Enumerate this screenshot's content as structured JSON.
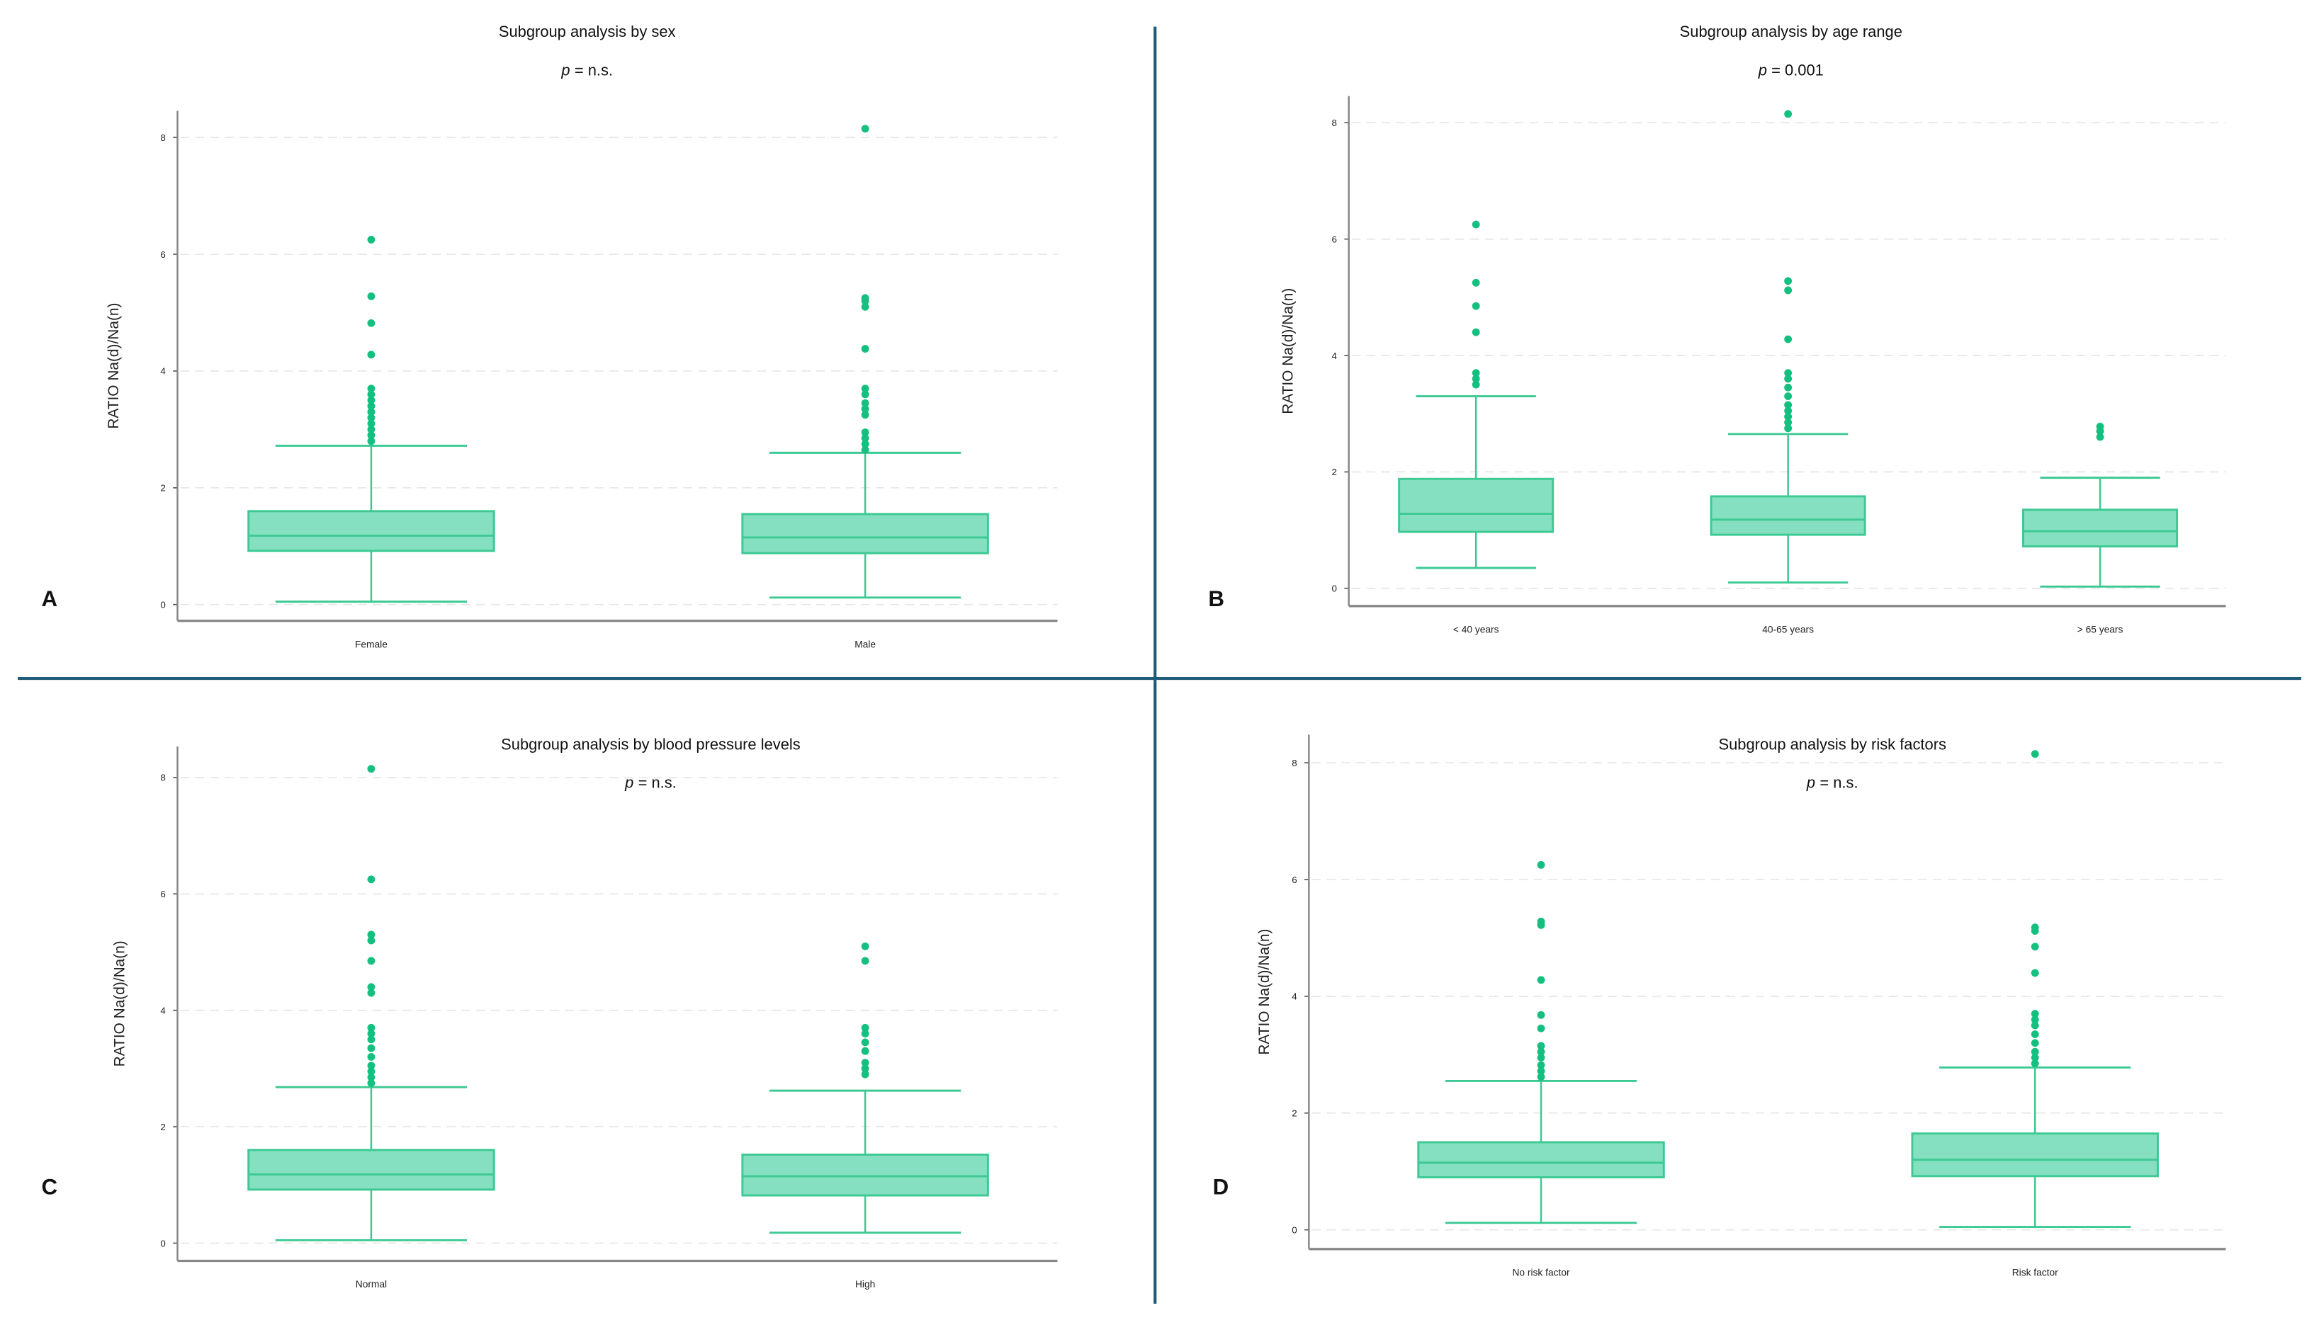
{
  "colors": {
    "box_fill": "#84e0c0",
    "box_stroke": "#3cc994",
    "outlier": "#14c080",
    "divider": "#1f5b78",
    "grid": "#e6e6e6"
  },
  "chart_data": [
    {
      "type": "box",
      "panel": "A",
      "title": "Subgroup analysis by sex",
      "p_label": "p",
      "p_value": "= n.s.",
      "ylabel": "RATIO Na(d)/Na(n)",
      "ylim": [
        -0.3,
        8.5
      ],
      "yticks": [
        "0",
        "2",
        "4",
        "6",
        "8"
      ],
      "grid": true,
      "categories": [
        "Female",
        "Male"
      ],
      "boxes": [
        {
          "min": 0.05,
          "q1": 0.92,
          "median": 1.18,
          "q3": 1.6,
          "max": 2.72,
          "outliers": [
            2.8,
            2.9,
            3.0,
            3.1,
            3.2,
            3.3,
            3.4,
            3.5,
            3.6,
            3.7,
            4.28,
            4.82,
            5.28,
            6.25
          ]
        },
        {
          "min": 0.12,
          "q1": 0.88,
          "median": 1.15,
          "q3": 1.55,
          "max": 2.6,
          "outliers": [
            2.65,
            2.75,
            2.85,
            2.95,
            3.25,
            3.35,
            3.45,
            3.6,
            3.7,
            4.38,
            5.1,
            5.2,
            5.25,
            8.15
          ]
        }
      ]
    },
    {
      "type": "box",
      "panel": "B",
      "title": "Subgroup analysis by age range",
      "p_label": "p",
      "p_value": "= 0.001",
      "ylabel": "RATIO Na(d)/Na(n)",
      "ylim": [
        -0.3,
        8.5
      ],
      "yticks": [
        "0",
        "2",
        "4",
        "6",
        "8"
      ],
      "grid": true,
      "categories": [
        "< 40 years",
        "40-65 years",
        "> 65 years"
      ],
      "boxes": [
        {
          "min": 0.35,
          "q1": 0.97,
          "median": 1.28,
          "q3": 1.88,
          "max": 3.3,
          "outliers": [
            3.5,
            3.6,
            3.7,
            4.4,
            4.85,
            5.25,
            6.25
          ]
        },
        {
          "min": 0.1,
          "q1": 0.92,
          "median": 1.18,
          "q3": 1.58,
          "max": 2.65,
          "outliers": [
            2.75,
            2.85,
            2.95,
            3.05,
            3.15,
            3.3,
            3.45,
            3.6,
            3.7,
            4.28,
            5.12,
            5.28,
            8.15
          ]
        },
        {
          "min": 0.03,
          "q1": 0.72,
          "median": 0.98,
          "q3": 1.35,
          "max": 1.9,
          "outliers": [
            2.6,
            2.7,
            2.78
          ]
        }
      ]
    },
    {
      "type": "box",
      "panel": "C",
      "title": "Subgroup analysis by blood pressure levels",
      "p_label": "p",
      "p_value": "= n.s.",
      "ylabel": "RATIO Na(d)/Na(n)",
      "ylim": [
        -0.3,
        8.5
      ],
      "yticks": [
        "0",
        "2",
        "4",
        "6",
        "8"
      ],
      "grid": true,
      "categories": [
        "Normal",
        "High"
      ],
      "boxes": [
        {
          "min": 0.05,
          "q1": 0.92,
          "median": 1.18,
          "q3": 1.6,
          "max": 2.68,
          "outliers": [
            2.75,
            2.85,
            2.95,
            3.05,
            3.2,
            3.35,
            3.5,
            3.6,
            3.7,
            4.3,
            4.4,
            4.85,
            5.2,
            5.3,
            6.25,
            8.15
          ]
        },
        {
          "min": 0.18,
          "q1": 0.82,
          "median": 1.15,
          "q3": 1.52,
          "max": 2.62,
          "outliers": [
            2.9,
            3.0,
            3.1,
            3.3,
            3.45,
            3.6,
            3.7,
            4.85,
            5.1
          ]
        }
      ]
    },
    {
      "type": "box",
      "panel": "D",
      "title": "Subgroup analysis by risk factors",
      "p_label": "p",
      "p_value": "= n.s.",
      "ylabel": "RATIO Na(d)/Na(n)",
      "ylim": [
        -0.3,
        8.5
      ],
      "yticks": [
        "0",
        "2",
        "4",
        "6",
        "8"
      ],
      "grid": true,
      "categories": [
        "No risk factor",
        "Risk factor"
      ],
      "boxes": [
        {
          "min": 0.12,
          "q1": 0.9,
          "median": 1.15,
          "q3": 1.5,
          "max": 2.55,
          "outliers": [
            2.62,
            2.72,
            2.82,
            2.95,
            3.05,
            3.15,
            3.45,
            3.68,
            4.28,
            5.22,
            5.28,
            6.25
          ]
        },
        {
          "min": 0.05,
          "q1": 0.92,
          "median": 1.2,
          "q3": 1.65,
          "max": 2.78,
          "outliers": [
            2.85,
            2.95,
            3.05,
            3.2,
            3.35,
            3.5,
            3.6,
            3.7,
            4.4,
            4.85,
            5.12,
            5.18,
            8.15
          ]
        }
      ]
    }
  ]
}
